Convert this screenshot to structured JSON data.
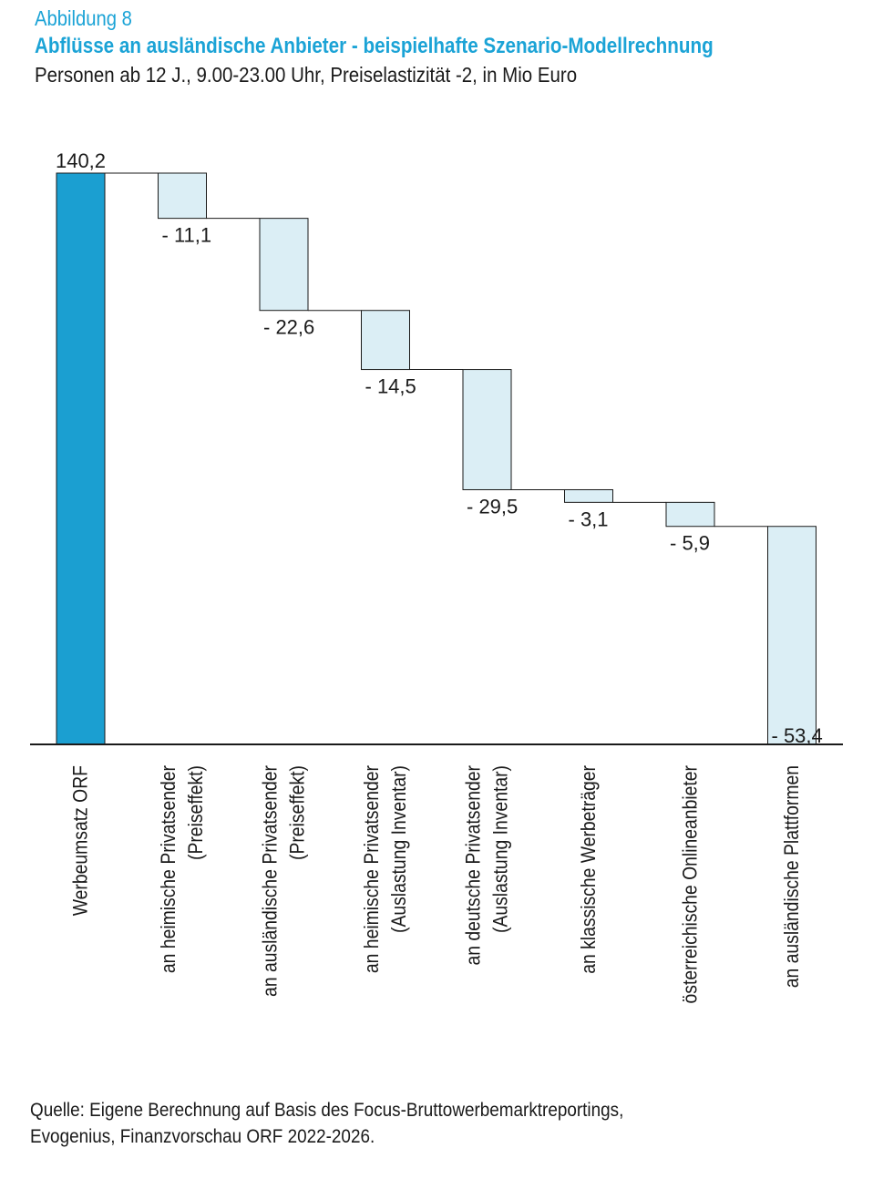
{
  "header": {
    "figure_number": "Abbildung 8",
    "title": "Abflüsse an ausländische Anbieter - beispielhafte Szenario-Modellrechnung",
    "subtitle": "Personen ab 12 J., 9.00-23.00 Uhr, Preiselastizität -2, in Mio Euro"
  },
  "chart_data": {
    "type": "bar",
    "variant": "waterfall",
    "start": {
      "label": "Werbeumsatz ORF",
      "value": 140.2,
      "display": "140,2"
    },
    "steps": [
      {
        "label_lines": [
          "an heimische Privatsender",
          "(Preiseffekt)"
        ],
        "value": -11.1,
        "display": "-  11,1"
      },
      {
        "label_lines": [
          "an ausländische Privatsender",
          "(Preiseffekt)"
        ],
        "value": -22.6,
        "display": "-  22,6"
      },
      {
        "label_lines": [
          "an heimische Privatsender",
          "(Auslastung Inventar)"
        ],
        "value": -14.5,
        "display": "-  14,5"
      },
      {
        "label_lines": [
          "an deutsche Privatsender",
          "(Auslastung Inventar)"
        ],
        "value": -29.5,
        "display": "-  29,5"
      },
      {
        "label_lines": [
          "an klassische Werbeträger"
        ],
        "value": -3.1,
        "display": "-  3,1"
      },
      {
        "label_lines": [
          "österreichische Onlineanbieter"
        ],
        "value": -5.9,
        "display": "-  5,9"
      },
      {
        "label_lines": [
          "an ausländische Plattformen"
        ],
        "value": -53.4,
        "display": "-  53,4"
      }
    ],
    "ylim": [
      0,
      140.2
    ],
    "grid": false,
    "legend": "none",
    "colors": {
      "start_bar": "#1b9fd1",
      "step_bar": "#dbeef5",
      "outline": "#1a1a1a"
    }
  },
  "footer": {
    "source_line1": "Quelle: Eigene Berechnung auf Basis des Focus-Bruttowerbemarktreportings,",
    "source_line2": "Evogenius, Finanzvorschau ORF 2022-2026."
  }
}
